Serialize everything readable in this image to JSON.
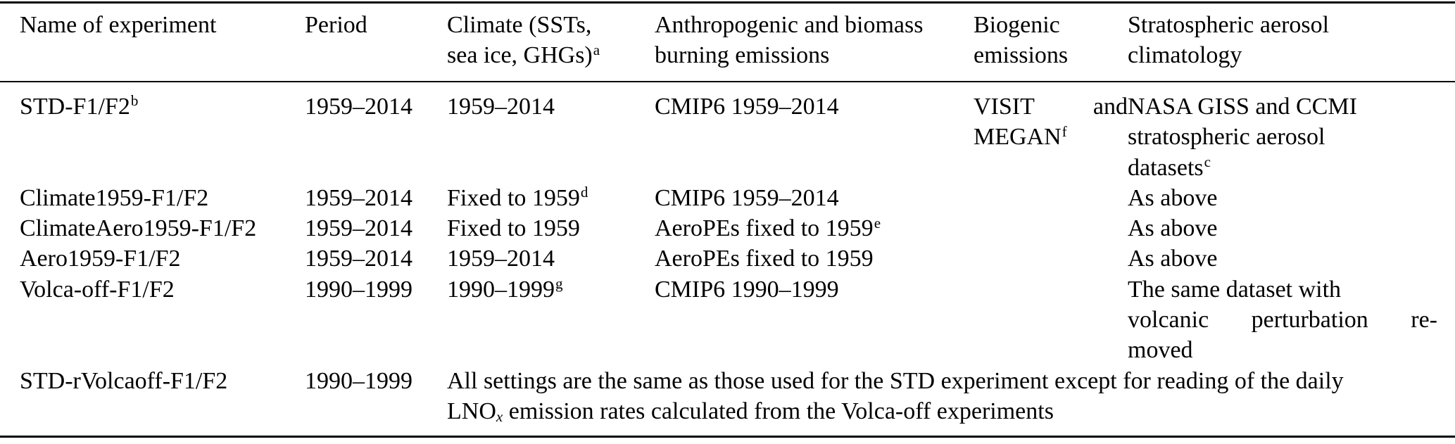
{
  "header": {
    "col1": "Name of experiment",
    "col2": "Period",
    "col3_line1": "Climate (SSTs,",
    "col3_line2": "sea ice, GHGs)",
    "col3_sup": "a",
    "col4_line1": "Anthropogenic and biomass",
    "col4_line2": "burning emissions",
    "col5_line1": "Biogenic",
    "col5_line2": "emissions",
    "col6_line1": "Stratospheric aerosol",
    "col6_line2": "climatology"
  },
  "rows": [
    {
      "name": "STD-F1/F2",
      "name_sup": "b",
      "period": "1959–2014",
      "climate": "1959–2014",
      "emissions": "CMIP6 1959–2014",
      "biogenic_word1": "VISIT",
      "biogenic_word2": "and",
      "biogenic_line2": "MEGAN",
      "biogenic_sup": "f",
      "aerosol_line1": "NASA GISS and CCMI",
      "aerosol_line2": "stratospheric aerosol",
      "aerosol_line3": "datasets",
      "aerosol_sup": "c"
    },
    {
      "name": "Climate1959-F1/F2",
      "period": "1959–2014",
      "climate": "Fixed to 1959",
      "climate_sup": "d",
      "emissions": "CMIP6 1959–2014",
      "aerosol": "As above"
    },
    {
      "name": "ClimateAero1959-F1/F2",
      "period": "1959–2014",
      "climate": "Fixed to 1959",
      "emissions": "AeroPEs fixed to 1959",
      "emissions_sup": "e",
      "aerosol": "As above"
    },
    {
      "name": "Aero1959-F1/F2",
      "period": "1959–2014",
      "climate": "1959–2014",
      "emissions": "AeroPEs fixed to 1959",
      "aerosol": "As above"
    },
    {
      "name": "Volca-off-F1/F2",
      "period": "1990–1999",
      "climate": "1990–1999",
      "climate_sup": "g",
      "emissions": "CMIP6 1990–1999",
      "aerosol_line1": "The same dataset with",
      "aerosol_line2_word1": "volcanic",
      "aerosol_line2_word2": "perturbation",
      "aerosol_line2_word3": "re-",
      "aerosol_line3": "moved"
    },
    {
      "name": "STD-rVolcaoff-F1/F2",
      "period": "1990–1999",
      "span_line1": "All settings are the same as those used for the STD experiment except for reading of the daily",
      "span_line2_pre": "LNO",
      "span_line2_sub": "x",
      "span_line2_post": " emission rates calculated from the Volca-off experiments"
    }
  ]
}
